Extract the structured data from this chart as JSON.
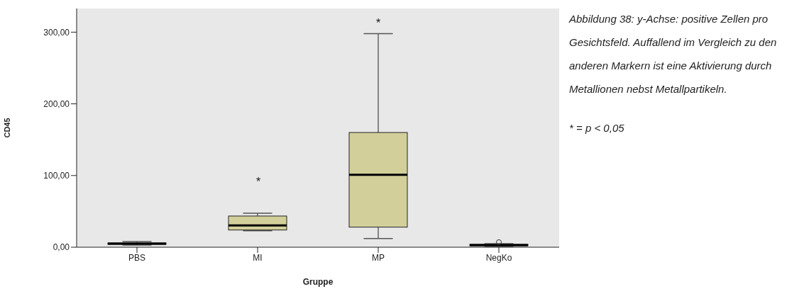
{
  "chart_data": {
    "type": "box",
    "xlabel": "Gruppe",
    "ylabel": "CD45",
    "categories": [
      "PBS",
      "MI",
      "MP",
      "NegKo"
    ],
    "color": "#d3cf9a",
    "boxes": [
      {
        "low": 3,
        "q1": 4,
        "median": 5,
        "q3": 6,
        "high": 8
      },
      {
        "low": 23,
        "q1": 24,
        "median": 30.5,
        "q3": 43.5,
        "high": 47.5
      },
      {
        "low": 12,
        "q1": 28,
        "median": 101,
        "q3": 160,
        "high": 298
      },
      {
        "low": 1,
        "q1": 2,
        "median": 3,
        "q3": 4,
        "high": 5,
        "outliers": [
          7
        ]
      }
    ],
    "ylim": [
      0,
      333
    ],
    "yticks": [
      {
        "value": 0,
        "label": "0,00"
      },
      {
        "value": 100,
        "label": "100,00"
      },
      {
        "value": 200,
        "label": "200,00"
      },
      {
        "value": 300,
        "label": "300,00"
      }
    ],
    "grid": false,
    "annotations": [
      "Abbildung 38: y-Achse: positive Zellen pro Gesichtsfeld. Auffallend im Vergleich zu den anderen Markern ist eine Aktivierung durch Metallionen nebst Metallpartikeln.",
      "* = p < 0,05",
      "*",
      "*"
    ]
  }
}
